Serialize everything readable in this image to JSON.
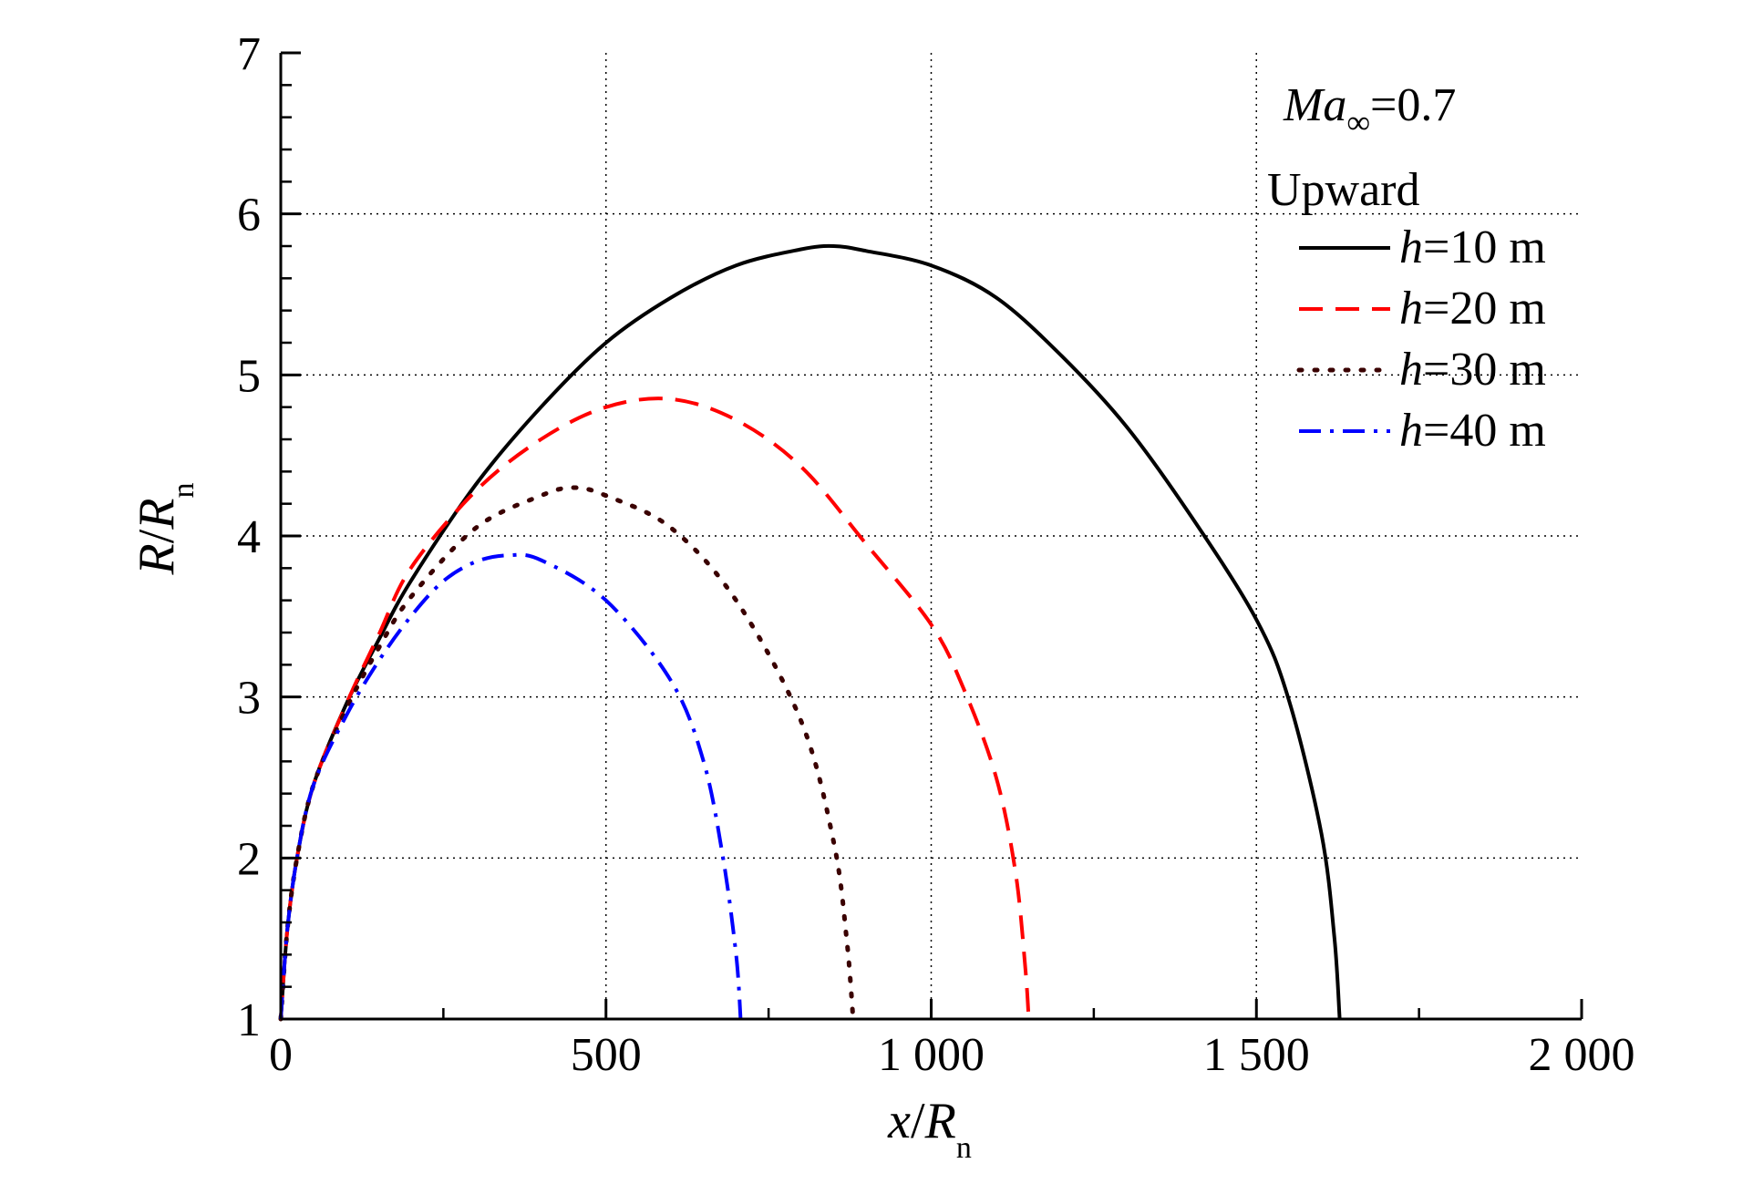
{
  "chart_data": {
    "type": "line",
    "xlabel": {
      "var": "x",
      "sep": "/",
      "denom": "R",
      "sub": "n"
    },
    "ylabel": {
      "var": "R",
      "sep": "/",
      "denom": "R",
      "sub": "n"
    },
    "xlim": [
      0,
      2000
    ],
    "ylim": [
      1,
      7
    ],
    "x_ticks": [
      0,
      500,
      1000,
      1500,
      2000
    ],
    "x_tick_labels": [
      "0",
      "500",
      "1 000",
      "1 500",
      "2 000"
    ],
    "y_ticks": [
      1,
      2,
      3,
      4,
      5,
      6,
      7
    ],
    "y_tick_labels": [
      "1",
      "2",
      "3",
      "4",
      "5",
      "6",
      "7"
    ],
    "grid": true,
    "legend_position": "top-right",
    "annotation": {
      "var": "Ma",
      "sub": "∞",
      "rest": "=0.7"
    },
    "legend_title": "Upward",
    "series": [
      {
        "name": "h=10 m",
        "label_var": "h",
        "label_rest": "=10 m",
        "color": "#000000",
        "dash": "solid",
        "points": [
          [
            0,
            1.0
          ],
          [
            10,
            1.55
          ],
          [
            25,
            2.0
          ],
          [
            50,
            2.45
          ],
          [
            100,
            2.95
          ],
          [
            150,
            3.35
          ],
          [
            200,
            3.72
          ],
          [
            300,
            4.32
          ],
          [
            400,
            4.8
          ],
          [
            500,
            5.2
          ],
          [
            600,
            5.48
          ],
          [
            700,
            5.68
          ],
          [
            800,
            5.78
          ],
          [
            850,
            5.8
          ],
          [
            900,
            5.77
          ],
          [
            1000,
            5.68
          ],
          [
            1100,
            5.48
          ],
          [
            1200,
            5.12
          ],
          [
            1300,
            4.68
          ],
          [
            1400,
            4.12
          ],
          [
            1500,
            3.48
          ],
          [
            1550,
            2.98
          ],
          [
            1600,
            2.15
          ],
          [
            1620,
            1.5
          ],
          [
            1628,
            1.0
          ]
        ]
      },
      {
        "name": "h=20 m",
        "label_var": "h",
        "label_rest": "=20 m",
        "color": "#ff0000",
        "dash": "dashed",
        "points": [
          [
            0,
            1.0
          ],
          [
            10,
            1.55
          ],
          [
            25,
            2.0
          ],
          [
            50,
            2.45
          ],
          [
            100,
            2.95
          ],
          [
            150,
            3.38
          ],
          [
            200,
            3.8
          ],
          [
            300,
            4.28
          ],
          [
            400,
            4.6
          ],
          [
            500,
            4.8
          ],
          [
            600,
            4.85
          ],
          [
            700,
            4.72
          ],
          [
            800,
            4.43
          ],
          [
            900,
            3.95
          ],
          [
            1000,
            3.45
          ],
          [
            1050,
            3.05
          ],
          [
            1100,
            2.5
          ],
          [
            1130,
            1.9
          ],
          [
            1145,
            1.3
          ],
          [
            1150,
            1.0
          ]
        ]
      },
      {
        "name": "h=30 m",
        "label_var": "h",
        "label_rest": "=30 m",
        "color": "#3a0000",
        "dash": "dotted",
        "points": [
          [
            0,
            1.0
          ],
          [
            10,
            1.55
          ],
          [
            25,
            2.0
          ],
          [
            50,
            2.45
          ],
          [
            100,
            2.92
          ],
          [
            150,
            3.3
          ],
          [
            200,
            3.62
          ],
          [
            300,
            4.05
          ],
          [
            400,
            4.25
          ],
          [
            450,
            4.3
          ],
          [
            500,
            4.25
          ],
          [
            600,
            4.05
          ],
          [
            700,
            3.6
          ],
          [
            800,
            2.85
          ],
          [
            850,
            2.1
          ],
          [
            870,
            1.5
          ],
          [
            880,
            1.0
          ]
        ]
      },
      {
        "name": "h=40 m",
        "label_var": "h",
        "label_rest": "=40 m",
        "color": "#0000ff",
        "dash": "dashdot",
        "points": [
          [
            0,
            1.0
          ],
          [
            10,
            1.55
          ],
          [
            25,
            2.0
          ],
          [
            50,
            2.45
          ],
          [
            100,
            2.88
          ],
          [
            150,
            3.22
          ],
          [
            200,
            3.5
          ],
          [
            250,
            3.72
          ],
          [
            300,
            3.84
          ],
          [
            350,
            3.88
          ],
          [
            400,
            3.85
          ],
          [
            500,
            3.6
          ],
          [
            600,
            3.1
          ],
          [
            650,
            2.6
          ],
          [
            680,
            2.0
          ],
          [
            700,
            1.4
          ],
          [
            707,
            1.0
          ]
        ]
      }
    ]
  }
}
